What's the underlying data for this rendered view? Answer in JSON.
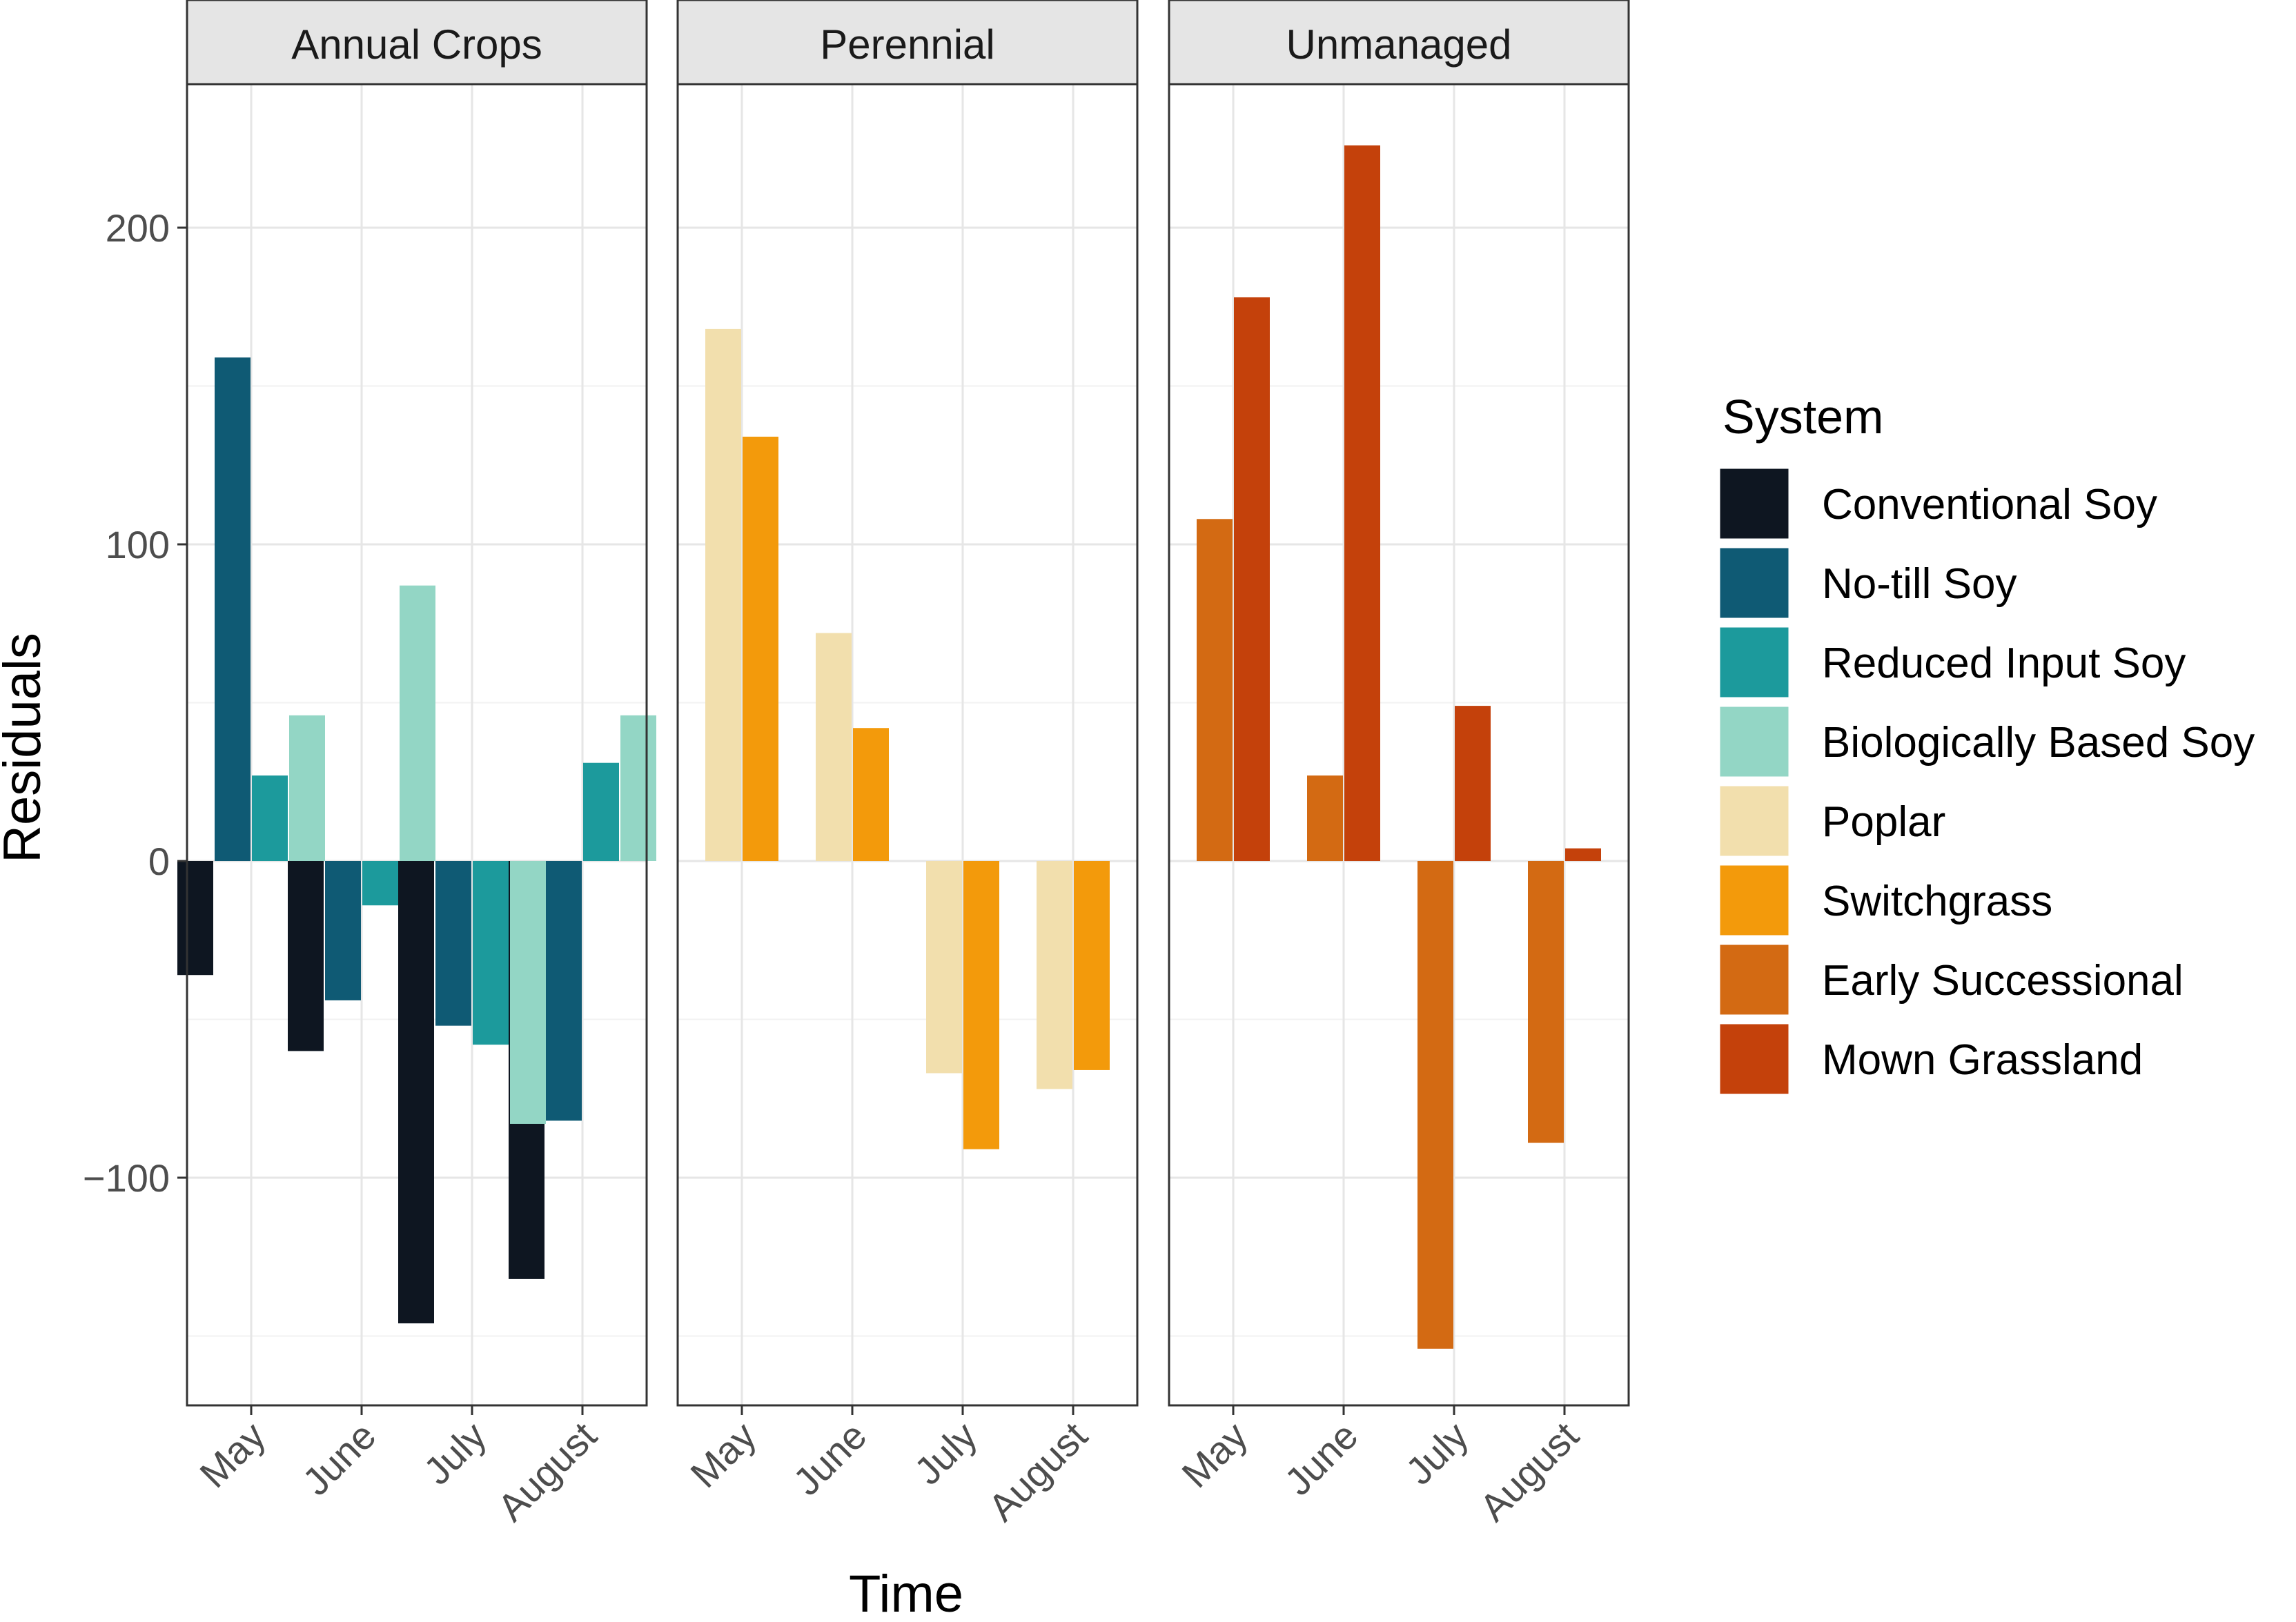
{
  "chart_data": {
    "type": "bar",
    "facet_by": "management",
    "panels": [
      "Annual Crops",
      "Perennial",
      "Unmanaged"
    ],
    "categories": [
      "May",
      "June",
      "July",
      "August"
    ],
    "xlabel": "Time",
    "ylabel": "Residuals",
    "ylim": [
      -172,
      250
    ],
    "yticks": [
      -100,
      0,
      100,
      200
    ],
    "grid": true,
    "legend": {
      "title": "System",
      "position": "right",
      "items": [
        {
          "name": "Conventional Soy",
          "color": "#0e1621"
        },
        {
          "name": "No-till Soy",
          "color": "#0f5a74"
        },
        {
          "name": "Reduced Input Soy",
          "color": "#1c9a9c"
        },
        {
          "name": "Biologically Based Soy",
          "color": "#93d6c5"
        },
        {
          "name": "Poplar",
          "color": "#f2dfad"
        },
        {
          "name": "Switchgrass",
          "color": "#f39a0b"
        },
        {
          "name": "Early Successional",
          "color": "#d36a13"
        },
        {
          "name": "Mown Grassland",
          "color": "#c4410b"
        }
      ]
    },
    "series": [
      {
        "name": "Conventional Soy",
        "panel": "Annual Crops",
        "values": [
          -36,
          -60,
          -146,
          -132
        ]
      },
      {
        "name": "No-till Soy",
        "panel": "Annual Crops",
        "values": [
          159,
          -44,
          -52,
          -82
        ]
      },
      {
        "name": "Reduced Input Soy",
        "panel": "Annual Crops",
        "values": [
          27,
          -14,
          -58,
          31
        ]
      },
      {
        "name": "Biologically Based Soy",
        "panel": "Annual Crops",
        "values": [
          46,
          87,
          -83,
          46
        ]
      },
      {
        "name": "Poplar",
        "panel": "Perennial",
        "values": [
          168,
          72,
          -67,
          -72
        ]
      },
      {
        "name": "Switchgrass",
        "panel": "Perennial",
        "values": [
          134,
          42,
          -91,
          -66
        ]
      },
      {
        "name": "Early Successional",
        "panel": "Unmanaged",
        "values": [
          108,
          27,
          -154,
          -89
        ]
      },
      {
        "name": "Mown Grassland",
        "panel": "Unmanaged",
        "values": [
          178,
          226,
          49,
          4
        ]
      }
    ]
  }
}
